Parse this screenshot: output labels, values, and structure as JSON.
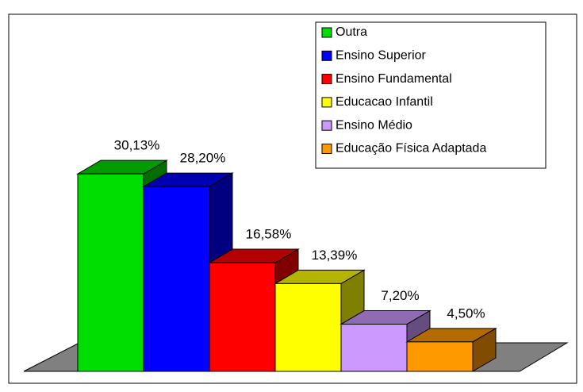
{
  "chart_data": {
    "type": "bar3d",
    "series": [
      {
        "name": "Outra",
        "color": "#00dd00",
        "values": [
          30.13
        ],
        "value_labels": [
          "30,13%"
        ]
      },
      {
        "name": "Ensino Superior",
        "color": "#0000ff",
        "values": [
          28.2
        ],
        "value_labels": [
          "28,20%"
        ]
      },
      {
        "name": "Ensino Fundamental",
        "color": "#ff0000",
        "values": [
          16.58
        ],
        "value_labels": [
          "16,58%"
        ]
      },
      {
        "name": "Educacao Infantil",
        "color": "#ffff00",
        "values": [
          13.39
        ],
        "value_labels": [
          "13,39%"
        ]
      },
      {
        "name": "Ensino Médio",
        "color": "#cc99ff",
        "values": [
          7.2
        ],
        "value_labels": [
          "7,20%"
        ]
      },
      {
        "name": "Educação Física Adaptada",
        "color": "#ff9900",
        "values": [
          4.5
        ],
        "value_labels": [
          "4,50%"
        ]
      }
    ]
  }
}
